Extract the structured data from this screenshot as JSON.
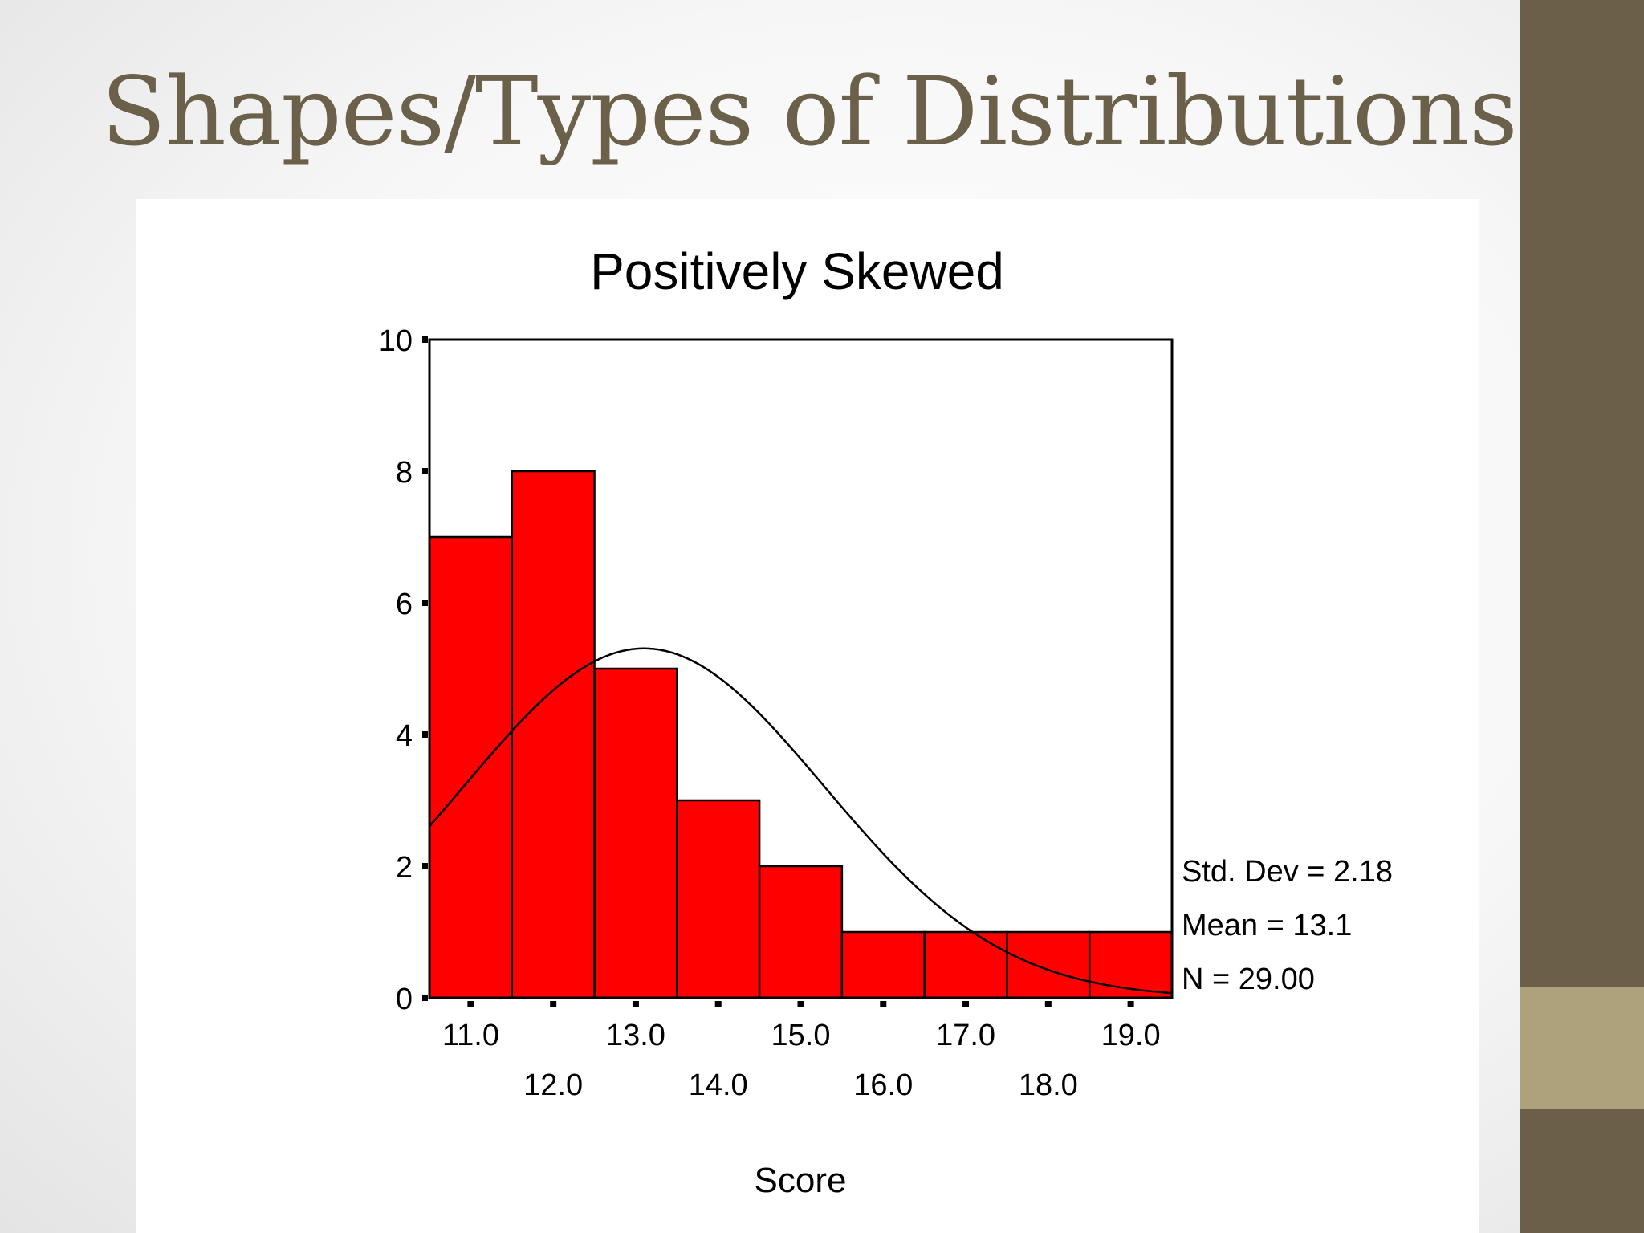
{
  "slide": {
    "title": "Shapes/Types of Distributions"
  },
  "colors": {
    "title": "#6b604a",
    "sidebar_dark": "#6b5f47",
    "sidebar_accent": "#ada27b",
    "bar_fill": "#ff0000",
    "bar_stroke": "#000000"
  },
  "chart_data": {
    "type": "bar",
    "title": "Positively Skewed",
    "xlabel": "Score",
    "ylabel": "",
    "ylim": [
      0,
      10
    ],
    "yticks": [
      0,
      2,
      4,
      6,
      8,
      10
    ],
    "categories": [
      "11.0",
      "12.0",
      "13.0",
      "14.0",
      "15.0",
      "16.0",
      "17.0",
      "18.0",
      "19.0"
    ],
    "values": [
      7,
      8,
      5,
      3,
      2,
      1,
      1,
      1,
      1
    ],
    "normal_curve": {
      "mean": 13.1,
      "std_dev": 2.18,
      "n": 29
    },
    "stats": [
      "Std. Dev = 2.18",
      "Mean = 13.1",
      "N = 29.00"
    ],
    "grid": false
  }
}
